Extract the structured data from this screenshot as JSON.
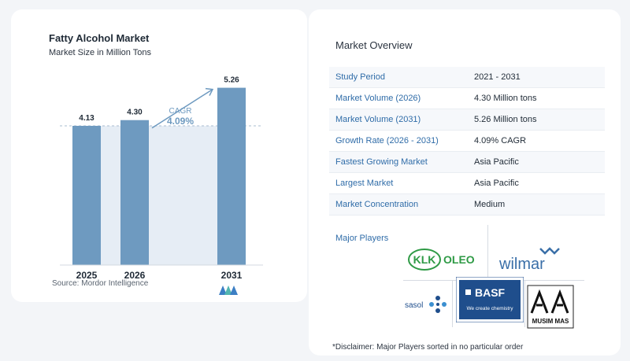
{
  "chart_data": {
    "type": "bar",
    "title": "Fatty Alcohol Market",
    "subtitle": "Market Size in Million Tons",
    "categories": [
      "2025",
      "2026",
      "2031"
    ],
    "values": [
      4.13,
      4.3,
      5.26
    ],
    "value_labels": [
      "4.13",
      "4.30",
      "5.26"
    ],
    "annotation": {
      "label": "CAGR",
      "value": "4.09%"
    },
    "reference_line_value": 4.13,
    "ylim": [
      0,
      5.6
    ],
    "grid": false,
    "bar_color": "#6e9ac0"
  },
  "source": "Source:  Mordor Intelligence",
  "overview": {
    "title": "Market Overview",
    "rows": [
      {
        "label": "Study Period",
        "value": "2021 - 2031"
      },
      {
        "label": "Market Volume (2026)",
        "value": "4.30 Million tons"
      },
      {
        "label": "Market Volume (2031)",
        "value": "5.26 Million tons"
      },
      {
        "label": "Growth Rate (2026 - 2031)",
        "value": "4.09% CAGR"
      },
      {
        "label": "Fastest Growing Market",
        "value": "Asia Pacific"
      },
      {
        "label": "Largest Market",
        "value": "Asia Pacific"
      },
      {
        "label": "Market Concentration",
        "value": "Medium"
      }
    ],
    "players_title": "Major Players",
    "disclaimer": "*Disclaimer: Major Players sorted in no particular order"
  },
  "logos": {
    "klk": "KLK",
    "klk_suffix": "OLEO",
    "wilmar": "wilmar",
    "sasol": "sasol",
    "basf": "BASF",
    "basf_tagline": "We create chemistry",
    "musim": "MUSIM MAS"
  },
  "colors": {
    "accent": "#2f6ca8",
    "bar": "#6e9ac0",
    "cagr": "#6e9ac0",
    "basf_blue": "#1f4e8c"
  }
}
